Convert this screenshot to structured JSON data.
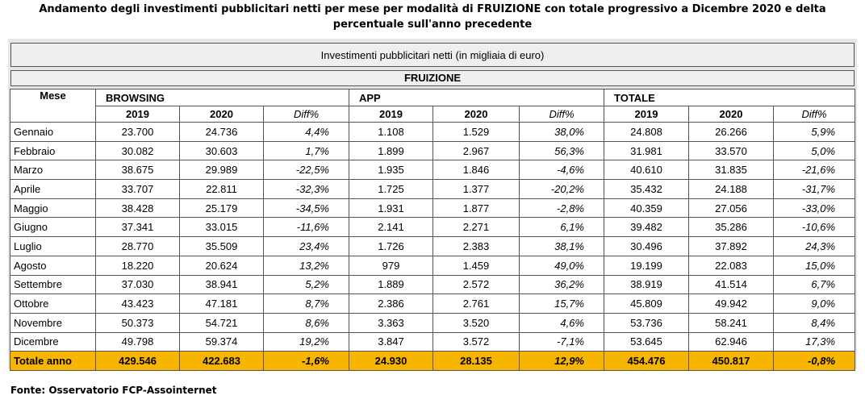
{
  "title": {
    "line1": "Andamento degli investimenti pubblicitari netti per mese per modalità di FRUIZIONE con totale progressivo a Dicembre 2020 e delta",
    "line2": "percentuale sull'anno precedente"
  },
  "table": {
    "caption": "Investimenti pubblicitari netti (in migliaia di euro)",
    "section": "FRUIZIONE",
    "month_header": "Mese",
    "groups": [
      "BROWSING",
      "APP",
      "TOTALE"
    ],
    "subheaders": [
      "2019",
      "2020",
      "Diff%"
    ],
    "rows": [
      {
        "month": "Gennaio",
        "b19": "23.700",
        "b20": "24.736",
        "bd": "4,4%",
        "a19": "1.108",
        "a20": "1.529",
        "ad": "38,0%",
        "t19": "24.808",
        "t20": "26.266",
        "td": "5,9%"
      },
      {
        "month": "Febbraio",
        "b19": "30.082",
        "b20": "30.603",
        "bd": "1,7%",
        "a19": "1.899",
        "a20": "2.967",
        "ad": "56,3%",
        "t19": "31.981",
        "t20": "33.570",
        "td": "5,0%"
      },
      {
        "month": "Marzo",
        "b19": "38.675",
        "b20": "29.989",
        "bd": "-22,5%",
        "a19": "1.935",
        "a20": "1.846",
        "ad": "-4,6%",
        "t19": "40.610",
        "t20": "31.835",
        "td": "-21,6%"
      },
      {
        "month": "Aprile",
        "b19": "33.707",
        "b20": "22.811",
        "bd": "-32,3%",
        "a19": "1.725",
        "a20": "1.377",
        "ad": "-20,2%",
        "t19": "35.432",
        "t20": "24.188",
        "td": "-31,7%"
      },
      {
        "month": "Maggio",
        "b19": "38.428",
        "b20": "25.179",
        "bd": "-34,5%",
        "a19": "1.931",
        "a20": "1.877",
        "ad": "-2,8%",
        "t19": "40.359",
        "t20": "27.056",
        "td": "-33,0%"
      },
      {
        "month": "Giugno",
        "b19": "37.341",
        "b20": "33.015",
        "bd": "-11,6%",
        "a19": "2.141",
        "a20": "2.271",
        "ad": "6,1%",
        "t19": "39.482",
        "t20": "35.286",
        "td": "-10,6%"
      },
      {
        "month": "Luglio",
        "b19": "28.770",
        "b20": "35.509",
        "bd": "23,4%",
        "a19": "1.726",
        "a20": "2.383",
        "ad": "38,1%",
        "t19": "30.496",
        "t20": "37.892",
        "td": "24,3%"
      },
      {
        "month": "Agosto",
        "b19": "18.220",
        "b20": "20.624",
        "bd": "13,2%",
        "a19": "979",
        "a20": "1.459",
        "ad": "49,0%",
        "t19": "19.199",
        "t20": "22.083",
        "td": "15,0%"
      },
      {
        "month": "Settembre",
        "b19": "37.030",
        "b20": "38.941",
        "bd": "5,2%",
        "a19": "1.889",
        "a20": "2.572",
        "ad": "36,2%",
        "t19": "38.919",
        "t20": "41.514",
        "td": "6,7%"
      },
      {
        "month": "Ottobre",
        "b19": "43.423",
        "b20": "47.181",
        "bd": "8,7%",
        "a19": "2.386",
        "a20": "2.761",
        "ad": "15,7%",
        "t19": "45.809",
        "t20": "49.942",
        "td": "9,0%"
      },
      {
        "month": "Novembre",
        "b19": "50.373",
        "b20": "54.721",
        "bd": "8,6%",
        "a19": "3.363",
        "a20": "3.520",
        "ad": "4,6%",
        "t19": "53.736",
        "t20": "58.241",
        "td": "8,4%"
      },
      {
        "month": "Dicembre",
        "b19": "49.798",
        "b20": "59.374",
        "bd": "19,2%",
        "a19": "3.847",
        "a20": "3.572",
        "ad": "-7,1%",
        "t19": "53.645",
        "t20": "62.946",
        "td": "17,3%"
      }
    ],
    "total": {
      "month": "Totale anno",
      "b19": "429.546",
      "b20": "422.683",
      "bd": "-1,6%",
      "a19": "24.930",
      "a20": "28.135",
      "ad": "12,9%",
      "t19": "454.476",
      "t20": "450.817",
      "td": "-0,8%"
    }
  },
  "footer": "Fonte: Osservatorio FCP-Assointernet",
  "colors": {
    "total_row_bg": "#f7b500",
    "band_bg": "#efefef"
  }
}
